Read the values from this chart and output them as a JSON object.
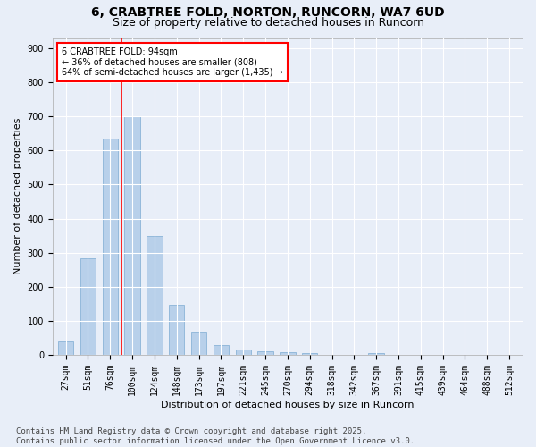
{
  "title_line1": "6, CRABTREE FOLD, NORTON, RUNCORN, WA7 6UD",
  "title_line2": "Size of property relative to detached houses in Runcorn",
  "xlabel": "Distribution of detached houses by size in Runcorn",
  "ylabel": "Number of detached properties",
  "categories": [
    "27sqm",
    "51sqm",
    "76sqm",
    "100sqm",
    "124sqm",
    "148sqm",
    "173sqm",
    "197sqm",
    "221sqm",
    "245sqm",
    "270sqm",
    "294sqm",
    "318sqm",
    "342sqm",
    "367sqm",
    "391sqm",
    "415sqm",
    "439sqm",
    "464sqm",
    "488sqm",
    "512sqm"
  ],
  "values": [
    43,
    283,
    635,
    700,
    350,
    147,
    68,
    30,
    15,
    11,
    9,
    5,
    0,
    0,
    6,
    0,
    0,
    0,
    0,
    0,
    0
  ],
  "bar_color": "#b8d0ea",
  "bar_edge_color": "#8ab4d8",
  "vline_color": "red",
  "vline_pos": 2.5,
  "annotation_text": "6 CRABTREE FOLD: 94sqm\n← 36% of detached houses are smaller (808)\n64% of semi-detached houses are larger (1,435) →",
  "annotation_box_color": "white",
  "annotation_box_edge_color": "red",
  "ylim": [
    0,
    930
  ],
  "yticks": [
    0,
    100,
    200,
    300,
    400,
    500,
    600,
    700,
    800,
    900
  ],
  "footnote": "Contains HM Land Registry data © Crown copyright and database right 2025.\nContains public sector information licensed under the Open Government Licence v3.0.",
  "background_color": "#e8eef8",
  "grid_color": "white",
  "title_fontsize": 10,
  "subtitle_fontsize": 9,
  "axis_label_fontsize": 8,
  "tick_fontsize": 7,
  "footnote_fontsize": 6.5,
  "bar_width": 0.7
}
